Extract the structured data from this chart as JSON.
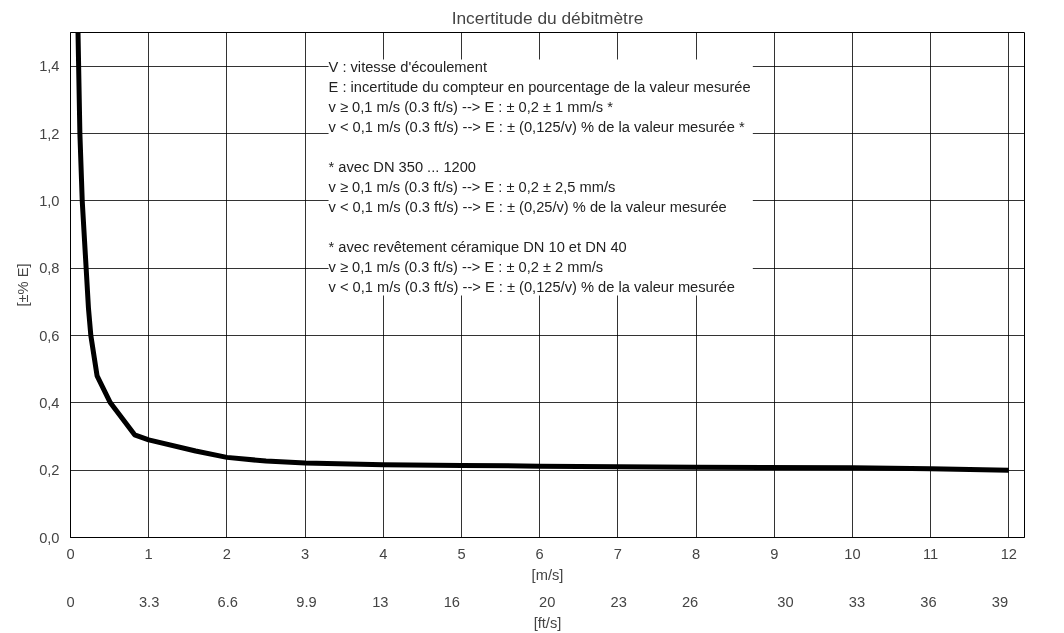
{
  "chart_data": {
    "type": "line",
    "title": "Incertitude du débitmètre",
    "xlabel": "[m/s]",
    "x2label": "[ft/s]",
    "ylabel": "[±% E]",
    "x": [
      0.096,
      0.12,
      0.15,
      0.2,
      0.23,
      0.26,
      0.34,
      0.51,
      0.82,
      1,
      1.6,
      2,
      2.5,
      3,
      4,
      5,
      6,
      8,
      10,
      11,
      12
    ],
    "series": [
      {
        "color": "#000000",
        "values": [
          1.5,
          1.2,
          1.0,
          0.8,
          0.68,
          0.6,
          0.48,
          0.4,
          0.305,
          0.29,
          0.257,
          0.238,
          0.227,
          0.221,
          0.216,
          0.214,
          0.212,
          0.209,
          0.207,
          0.204,
          0.2
        ]
      }
    ],
    "xlim": [
      0,
      12.2
    ],
    "xticks": [
      0,
      1,
      2,
      3,
      4,
      5,
      6,
      7,
      8,
      9,
      10,
      11,
      12
    ],
    "x2lim": [
      0,
      40.03
    ],
    "x2ticks": [
      0,
      3.3,
      6.6,
      9.9,
      13,
      16,
      20,
      23,
      26,
      30,
      33,
      36,
      39
    ],
    "ylim": [
      0,
      1.5
    ],
    "yticks": [
      {
        "value": 0,
        "label": "0,0"
      },
      {
        "value": 0.2,
        "label": "0,2"
      },
      {
        "value": 0.4,
        "label": "0,4"
      },
      {
        "value": 0.6,
        "label": "0,6"
      },
      {
        "value": 0.8,
        "label": "0,8"
      },
      {
        "value": 1.0,
        "label": "1,0"
      },
      {
        "value": 1.2,
        "label": "1,2"
      },
      {
        "value": 1.4,
        "label": "1,4"
      }
    ],
    "grid": true,
    "marker": "none",
    "line_style": "solid",
    "annotations": [
      "V : vitesse d'écoulement\nE : incertitude du compteur en pourcentage de la valeur mesurée\nv ≥  0,1 m/s (0.3 ft/s) --> E :  ± 0,2 ± 1 mm/s *\nv <  0,1 m/s (0.3 ft/s) --> E :  ± (0,125/v) % de la valeur mesurée *",
      "* avec DN 350 ... 1200\nv ≥  0,1 m/s (0.3 ft/s) --> E :  ± 0,2 ± 2,5 mm/s\nv <  0,1 m/s (0.3 ft/s) --> E :  ± (0,25/v) % de la valeur mesurée",
      "* avec revêtement céramique DN 10 et DN 40\nv ≥  0,1 m/s (0.3 ft/s) --> E :  ± 0,2 ± 2 mm/s\nv <  0,1 m/s (0.3 ft/s) --> E :  ± (0,125/v) % de la valeur mesurée"
    ]
  }
}
